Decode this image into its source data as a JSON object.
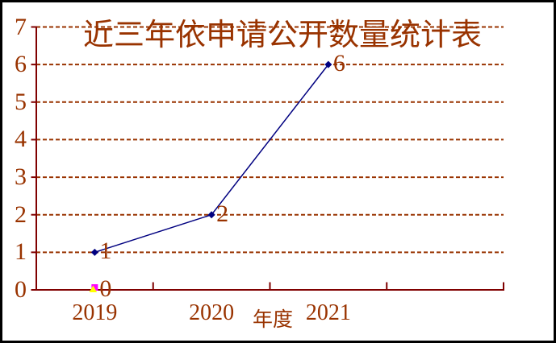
{
  "window": {
    "background": "#FFFFFF",
    "border_color": "#000000"
  },
  "title": {
    "text": "近三年依申请公开数量统计表",
    "color": "#993300"
  },
  "chart_data": {
    "type": "line",
    "title": "近三年依申请公开数量统计表",
    "categories": [
      "2019",
      "2020",
      "2021"
    ],
    "series": [
      {
        "name": "disclosure-count-line",
        "marker": "diamond",
        "color": "#000080",
        "values": [
          1,
          2,
          6
        ],
        "point_labels": [
          "1",
          "2",
          "6"
        ]
      },
      {
        "name": "zero-series-square",
        "marker": "square",
        "color": "#FF00FF",
        "values": [
          0,
          null,
          null
        ],
        "point_labels": [
          "0",
          "",
          ""
        ]
      },
      {
        "name": "zero-series-triangle",
        "marker": "triangle",
        "color": "#FFFF00",
        "values": [
          0,
          null,
          null
        ],
        "point_labels": [
          "",
          "",
          ""
        ]
      }
    ],
    "xlabel": "年度",
    "ylabel": "",
    "ylim": [
      0,
      7
    ],
    "y_tick_labels": [
      "0",
      "1",
      "2",
      "3",
      "4",
      "5",
      "6",
      "7"
    ],
    "grid": {
      "horizontal": true,
      "style": "dashed",
      "color": "#993300"
    },
    "axis_color": "#800000",
    "label_color": "#993300",
    "legend": "none"
  }
}
